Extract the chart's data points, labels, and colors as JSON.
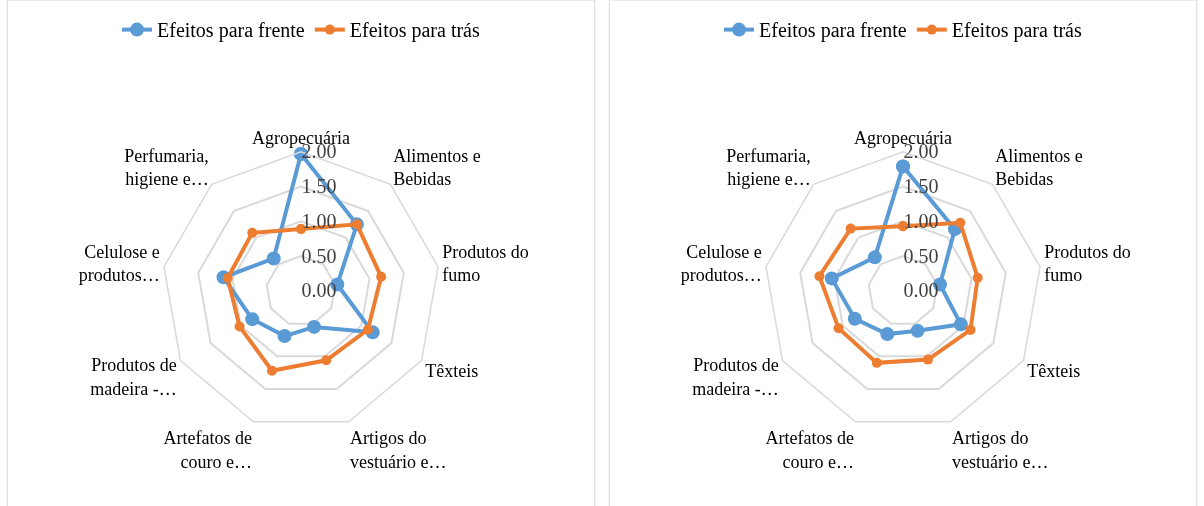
{
  "chart_data": [
    {
      "type": "radar",
      "categories": [
        "Agropecuária",
        "Alimentos e Bebidas",
        "Produtos do fumo",
        "Têxteis",
        "Artigos do vestuário e…",
        "Artefatos de couro e…",
        "Produtos de madeira -…",
        "Celulose e produtos…",
        "Perfumaria, higiene e…"
      ],
      "series": [
        {
          "name": "Efeitos para frente",
          "color": "#5b9bd5",
          "values": [
            1.97,
            1.25,
            0.53,
            1.19,
            0.55,
            0.69,
            0.81,
            1.13,
            0.61
          ]
        },
        {
          "name": "Efeitos para trás",
          "color": "#ed7d31",
          "values": [
            0.89,
            1.25,
            1.17,
            1.11,
            1.06,
            1.22,
            1.02,
            1.07,
            1.09
          ]
        }
      ],
      "ylim": [
        0,
        2
      ],
      "yticks": [
        {
          "value": 0,
          "label": "0.00"
        },
        {
          "value": 0.5,
          "label": "0.50"
        },
        {
          "value": 1,
          "label": "1.00"
        },
        {
          "value": 1.5,
          "label": "1.50"
        },
        {
          "value": 2,
          "label": "2.00"
        }
      ],
      "grid": true,
      "legend": "top",
      "marker": "circle"
    },
    {
      "type": "radar",
      "categories": [
        "Agropecuária",
        "Alimentos e Bebidas",
        "Produtos do fumo",
        "Têxteis",
        "Artigos do vestuário e…",
        "Artefatos de couro e…",
        "Produtos de madeira -…",
        "Celulose e produtos…",
        "Perfumaria, higiene e…"
      ],
      "series": [
        {
          "name": "Efeitos para frente",
          "color": "#5b9bd5",
          "values": [
            1.79,
            1.16,
            0.54,
            0.96,
            0.61,
            0.66,
            0.8,
            1.04,
            0.63
          ]
        },
        {
          "name": "Efeitos para trás",
          "color": "#ed7d31",
          "values": [
            0.93,
            1.28,
            1.09,
            1.12,
            1.05,
            1.1,
            1.07,
            1.22,
            1.17
          ]
        }
      ],
      "ylim": [
        0,
        2
      ],
      "yticks": [
        {
          "value": 0,
          "label": "0.00"
        },
        {
          "value": 0.5,
          "label": "0.50"
        },
        {
          "value": 1,
          "label": "1.00"
        },
        {
          "value": 1.5,
          "label": "1.50"
        },
        {
          "value": 2,
          "label": "2.00"
        }
      ],
      "grid": true,
      "legend": "top",
      "marker": "circle"
    }
  ]
}
